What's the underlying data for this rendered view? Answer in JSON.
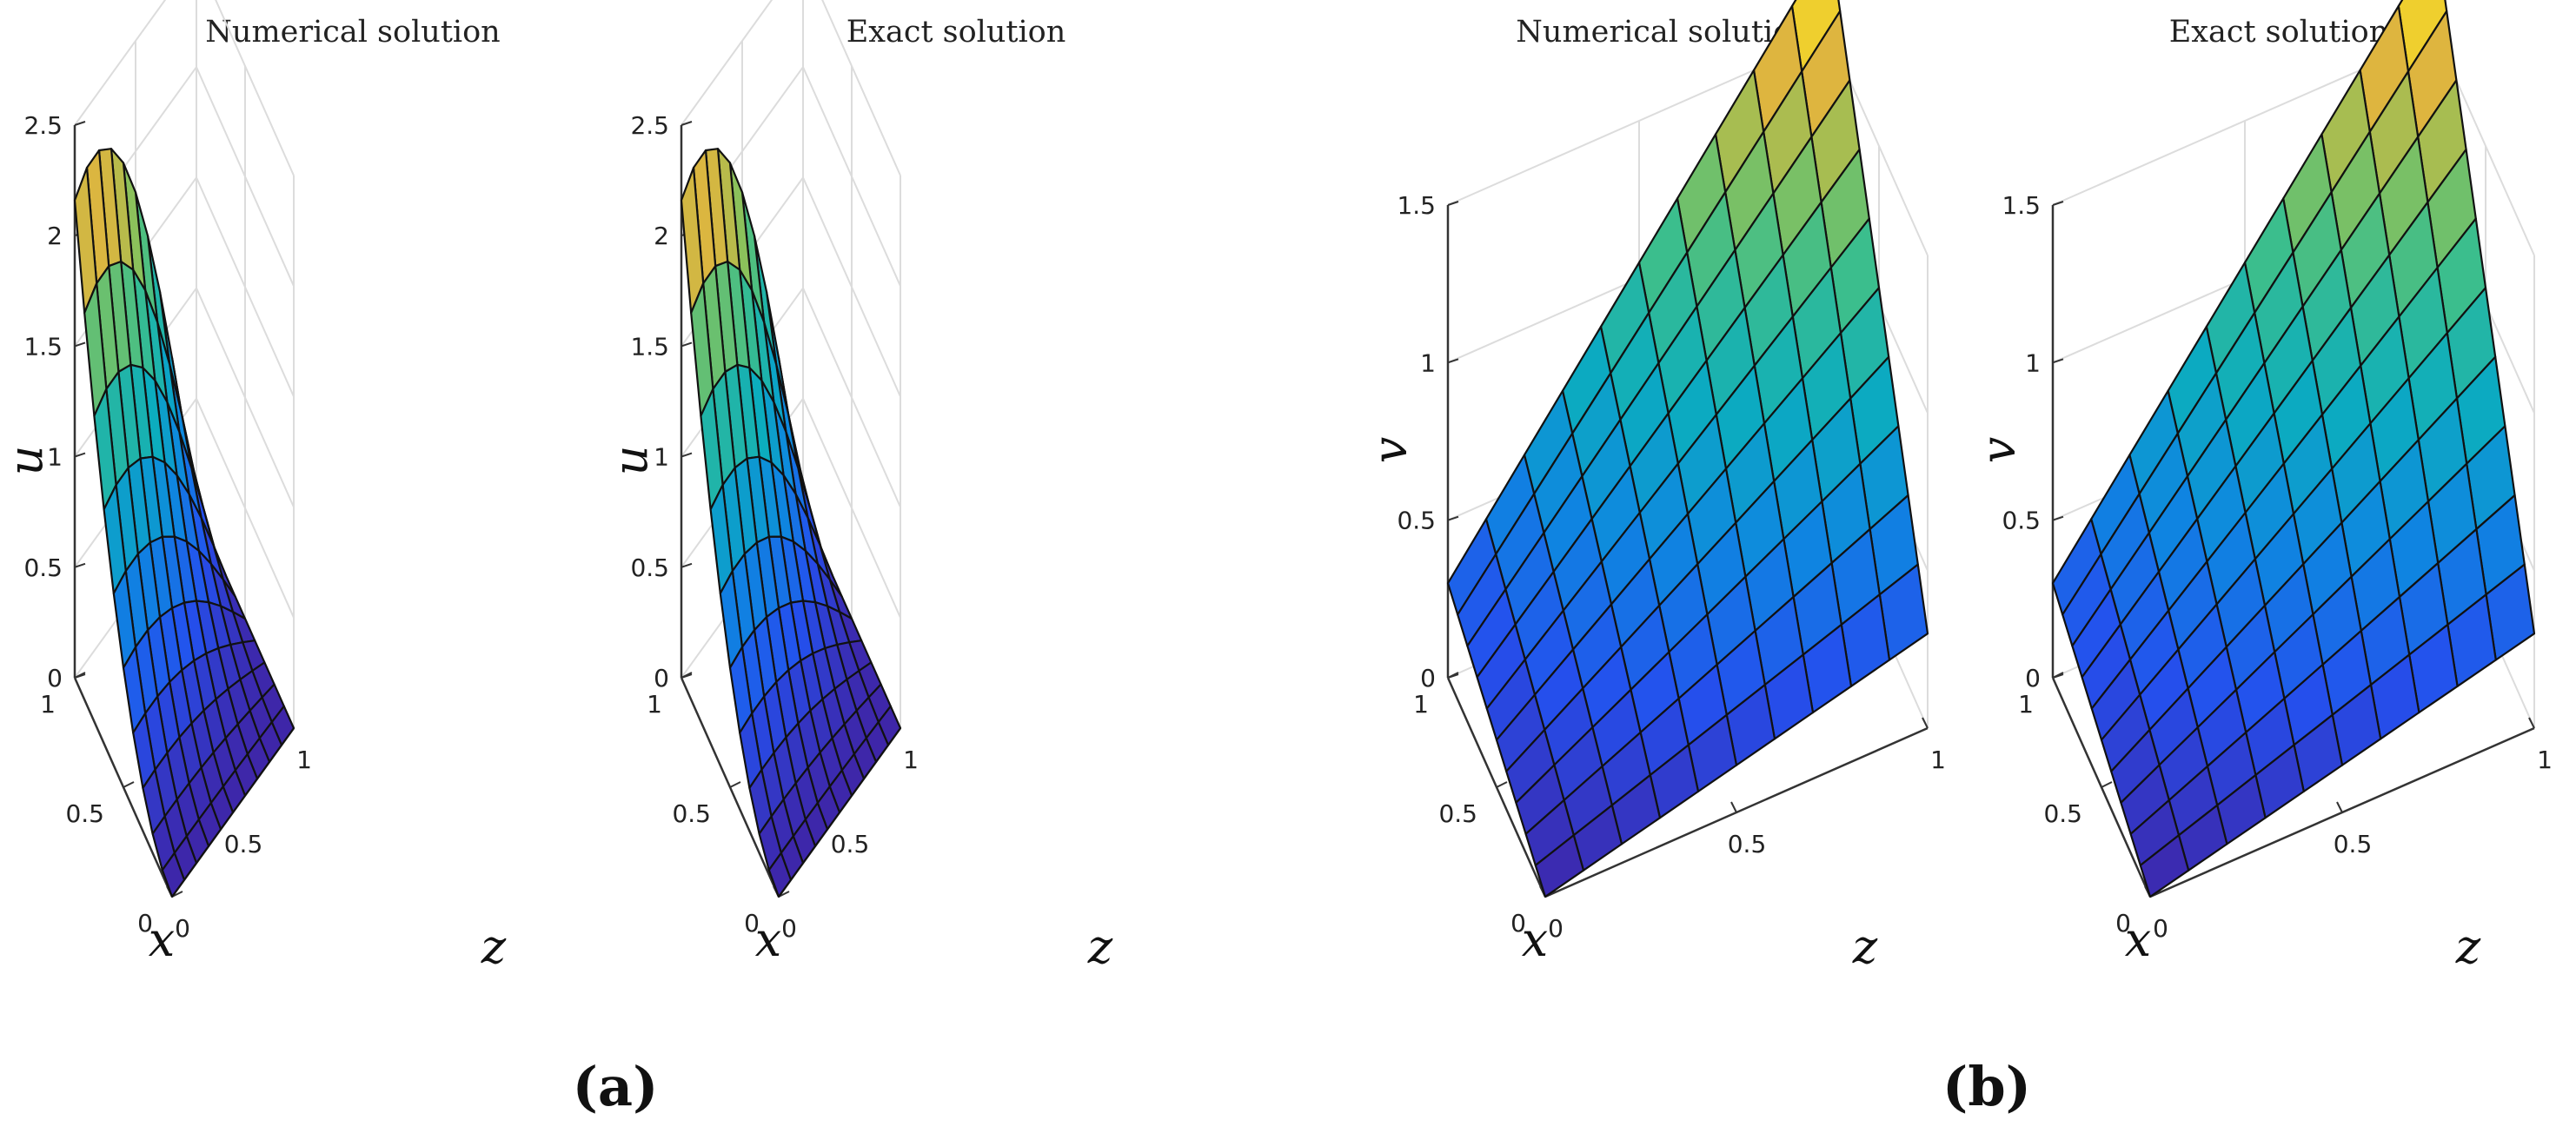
{
  "chart_data": [
    {
      "type": "surface",
      "panel": "(a)",
      "title": "Numerical solution",
      "xlabel": "x",
      "ylabel": "z",
      "zlabel": "u",
      "xlim": [
        0,
        1
      ],
      "ylim": [
        0,
        1
      ],
      "zlim": [
        0,
        2.5
      ],
      "x_ticks": [
        "0",
        "0.5",
        "1"
      ],
      "y_ticks": [
        "0",
        "0.5",
        "1"
      ],
      "z_ticks": [
        "0",
        "0.5",
        "1",
        "1.5",
        "2",
        "2.5"
      ],
      "grid": true,
      "colormap": "parula",
      "mesh": [
        11,
        11
      ],
      "corner_values": {
        "x0_z0": 0.0,
        "x0_z1": 0.0,
        "x1_z0": 2.16,
        "x1_z1": 0.0
      },
      "edge_x1_peak": 2.42
    },
    {
      "type": "surface",
      "panel": "(a)",
      "title": "Exact solution",
      "xlabel": "x",
      "ylabel": "z",
      "zlabel": "u",
      "xlim": [
        0,
        1
      ],
      "ylim": [
        0,
        1
      ],
      "zlim": [
        0,
        2.5
      ],
      "x_ticks": [
        "0",
        "0.5",
        "1"
      ],
      "y_ticks": [
        "0",
        "0.5",
        "1"
      ],
      "z_ticks": [
        "0",
        "0.5",
        "1",
        "1.5",
        "2",
        "2.5"
      ],
      "grid": true,
      "colormap": "parula",
      "mesh": [
        11,
        11
      ],
      "corner_values": {
        "x0_z0": 0.0,
        "x0_z1": 0.0,
        "x1_z0": 2.16,
        "x1_z1": 0.0
      },
      "edge_x1_peak": 2.42
    },
    {
      "type": "surface",
      "panel": "(b)",
      "title": "Numerical solution",
      "xlabel": "x",
      "ylabel": "z",
      "zlabel": "v",
      "xlim": [
        0,
        1
      ],
      "ylim": [
        0,
        1
      ],
      "zlim": [
        0,
        1.5
      ],
      "x_ticks": [
        "0",
        "0.5",
        "1"
      ],
      "y_ticks": [
        "0",
        "0.5",
        "1"
      ],
      "z_ticks": [
        "0",
        "0.5",
        "1",
        "1.5"
      ],
      "grid": true,
      "colormap": "parula",
      "mesh": [
        11,
        11
      ],
      "corner_values": {
        "x0_z0": 0.0,
        "x0_z1": 0.3,
        "x1_z0": 0.3,
        "x1_z1": 1.8
      }
    },
    {
      "type": "surface",
      "panel": "(b)",
      "title": "Exact solution",
      "xlabel": "x",
      "ylabel": "z",
      "zlabel": "v",
      "xlim": [
        0,
        1
      ],
      "ylim": [
        0,
        1
      ],
      "zlim": [
        0,
        1.5
      ],
      "x_ticks": [
        "0",
        "0.5",
        "1"
      ],
      "y_ticks": [
        "0",
        "0.5",
        "1"
      ],
      "z_ticks": [
        "0",
        "0.5",
        "1",
        "1.5"
      ],
      "grid": true,
      "colormap": "parula",
      "mesh": [
        11,
        11
      ],
      "corner_values": {
        "x0_z0": 0.0,
        "x0_z1": 0.3,
        "x1_z0": 0.3,
        "x1_z1": 1.8
      }
    }
  ],
  "panel_labels": [
    "(a)",
    "(b)"
  ]
}
